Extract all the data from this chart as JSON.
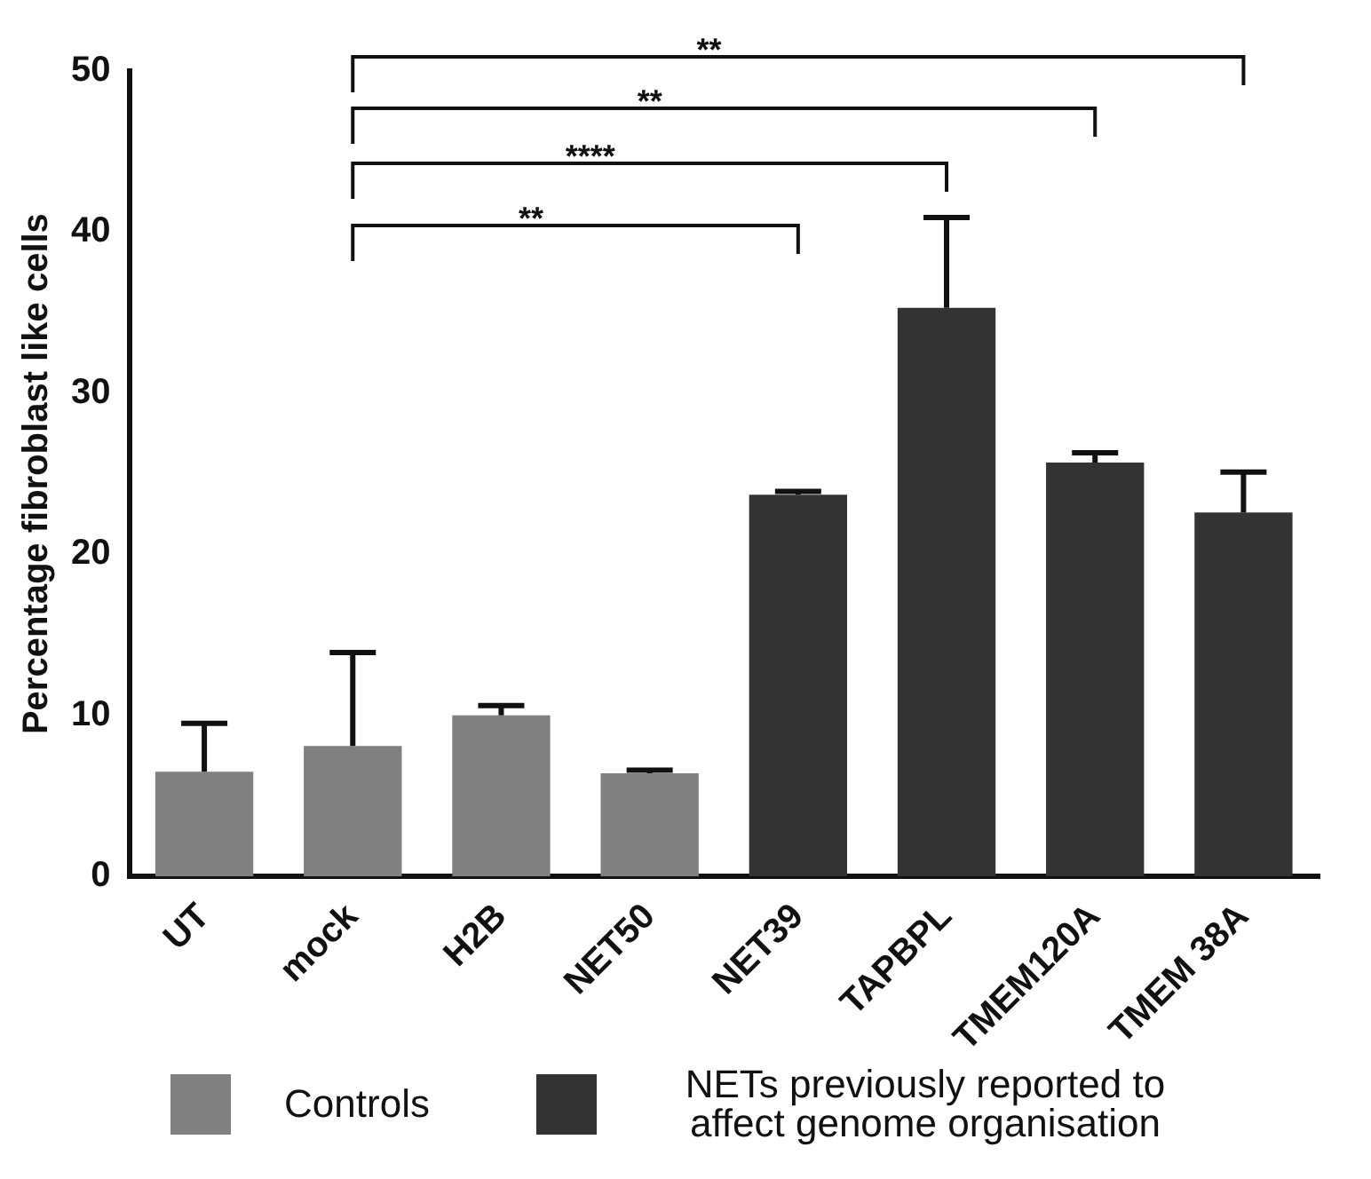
{
  "chart_data": {
    "type": "bar",
    "ylabel": "Percentage fibroblast like cells",
    "categories": [
      "UT",
      "mock",
      "H2B",
      "NET50",
      "NET39",
      "TAPBPL",
      "TMEM120A",
      "TMEM 38A"
    ],
    "series": [
      {
        "name": "Controls",
        "color": "#808080",
        "values": [
          6.5,
          8.1,
          10.0,
          6.4,
          null,
          null,
          null,
          null
        ],
        "errors": [
          [
            6.5,
            9.5
          ],
          [
            8.1,
            13.9
          ],
          [
            10.0,
            10.6
          ],
          [
            6.4,
            6.6
          ],
          null,
          null,
          null,
          null
        ]
      },
      {
        "name": "NETs previously reported to affect genome organisation",
        "color": "#333333",
        "values": [
          null,
          null,
          null,
          null,
          23.7,
          35.3,
          25.7,
          22.6
        ],
        "errors": [
          null,
          null,
          null,
          null,
          [
            23.7,
            23.9
          ],
          [
            35.3,
            40.9
          ],
          [
            25.7,
            26.3
          ],
          [
            22.6,
            25.1
          ]
        ]
      }
    ],
    "ylim": [
      0,
      50
    ],
    "yticks": [
      0,
      10,
      20,
      30,
      40,
      50
    ],
    "grid": false,
    "legend": "bottom",
    "annotations": [
      "**",
      "****",
      "**",
      "**"
    ]
  }
}
